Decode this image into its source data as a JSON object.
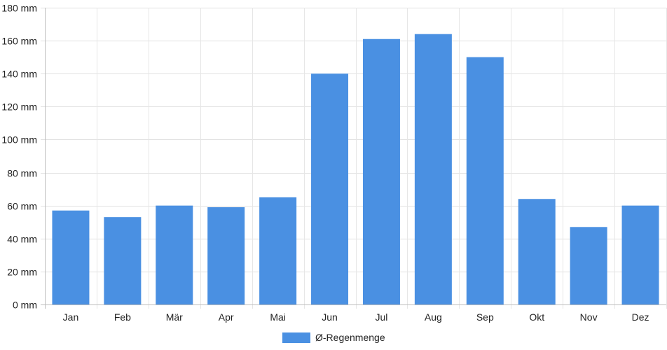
{
  "chart_data": {
    "type": "bar",
    "categories": [
      "Jan",
      "Feb",
      "Mär",
      "Apr",
      "Mai",
      "Jun",
      "Jul",
      "Aug",
      "Sep",
      "Okt",
      "Nov",
      "Dez"
    ],
    "series": [
      {
        "name": "Ø-Regenmenge",
        "values": [
          57,
          53,
          60,
          59,
          65,
          140,
          161,
          164,
          150,
          64,
          47,
          60
        ],
        "color": "#4a90e2"
      }
    ],
    "y_unit": "mm",
    "y_ticks": [
      "0 mm",
      "20 mm",
      "40 mm",
      "60 mm",
      "80 mm",
      "100 mm",
      "120 mm",
      "140 mm",
      "160 mm",
      "180 mm"
    ],
    "ylim": [
      0,
      180
    ],
    "grid": true,
    "legend_position": "bottom-center"
  }
}
